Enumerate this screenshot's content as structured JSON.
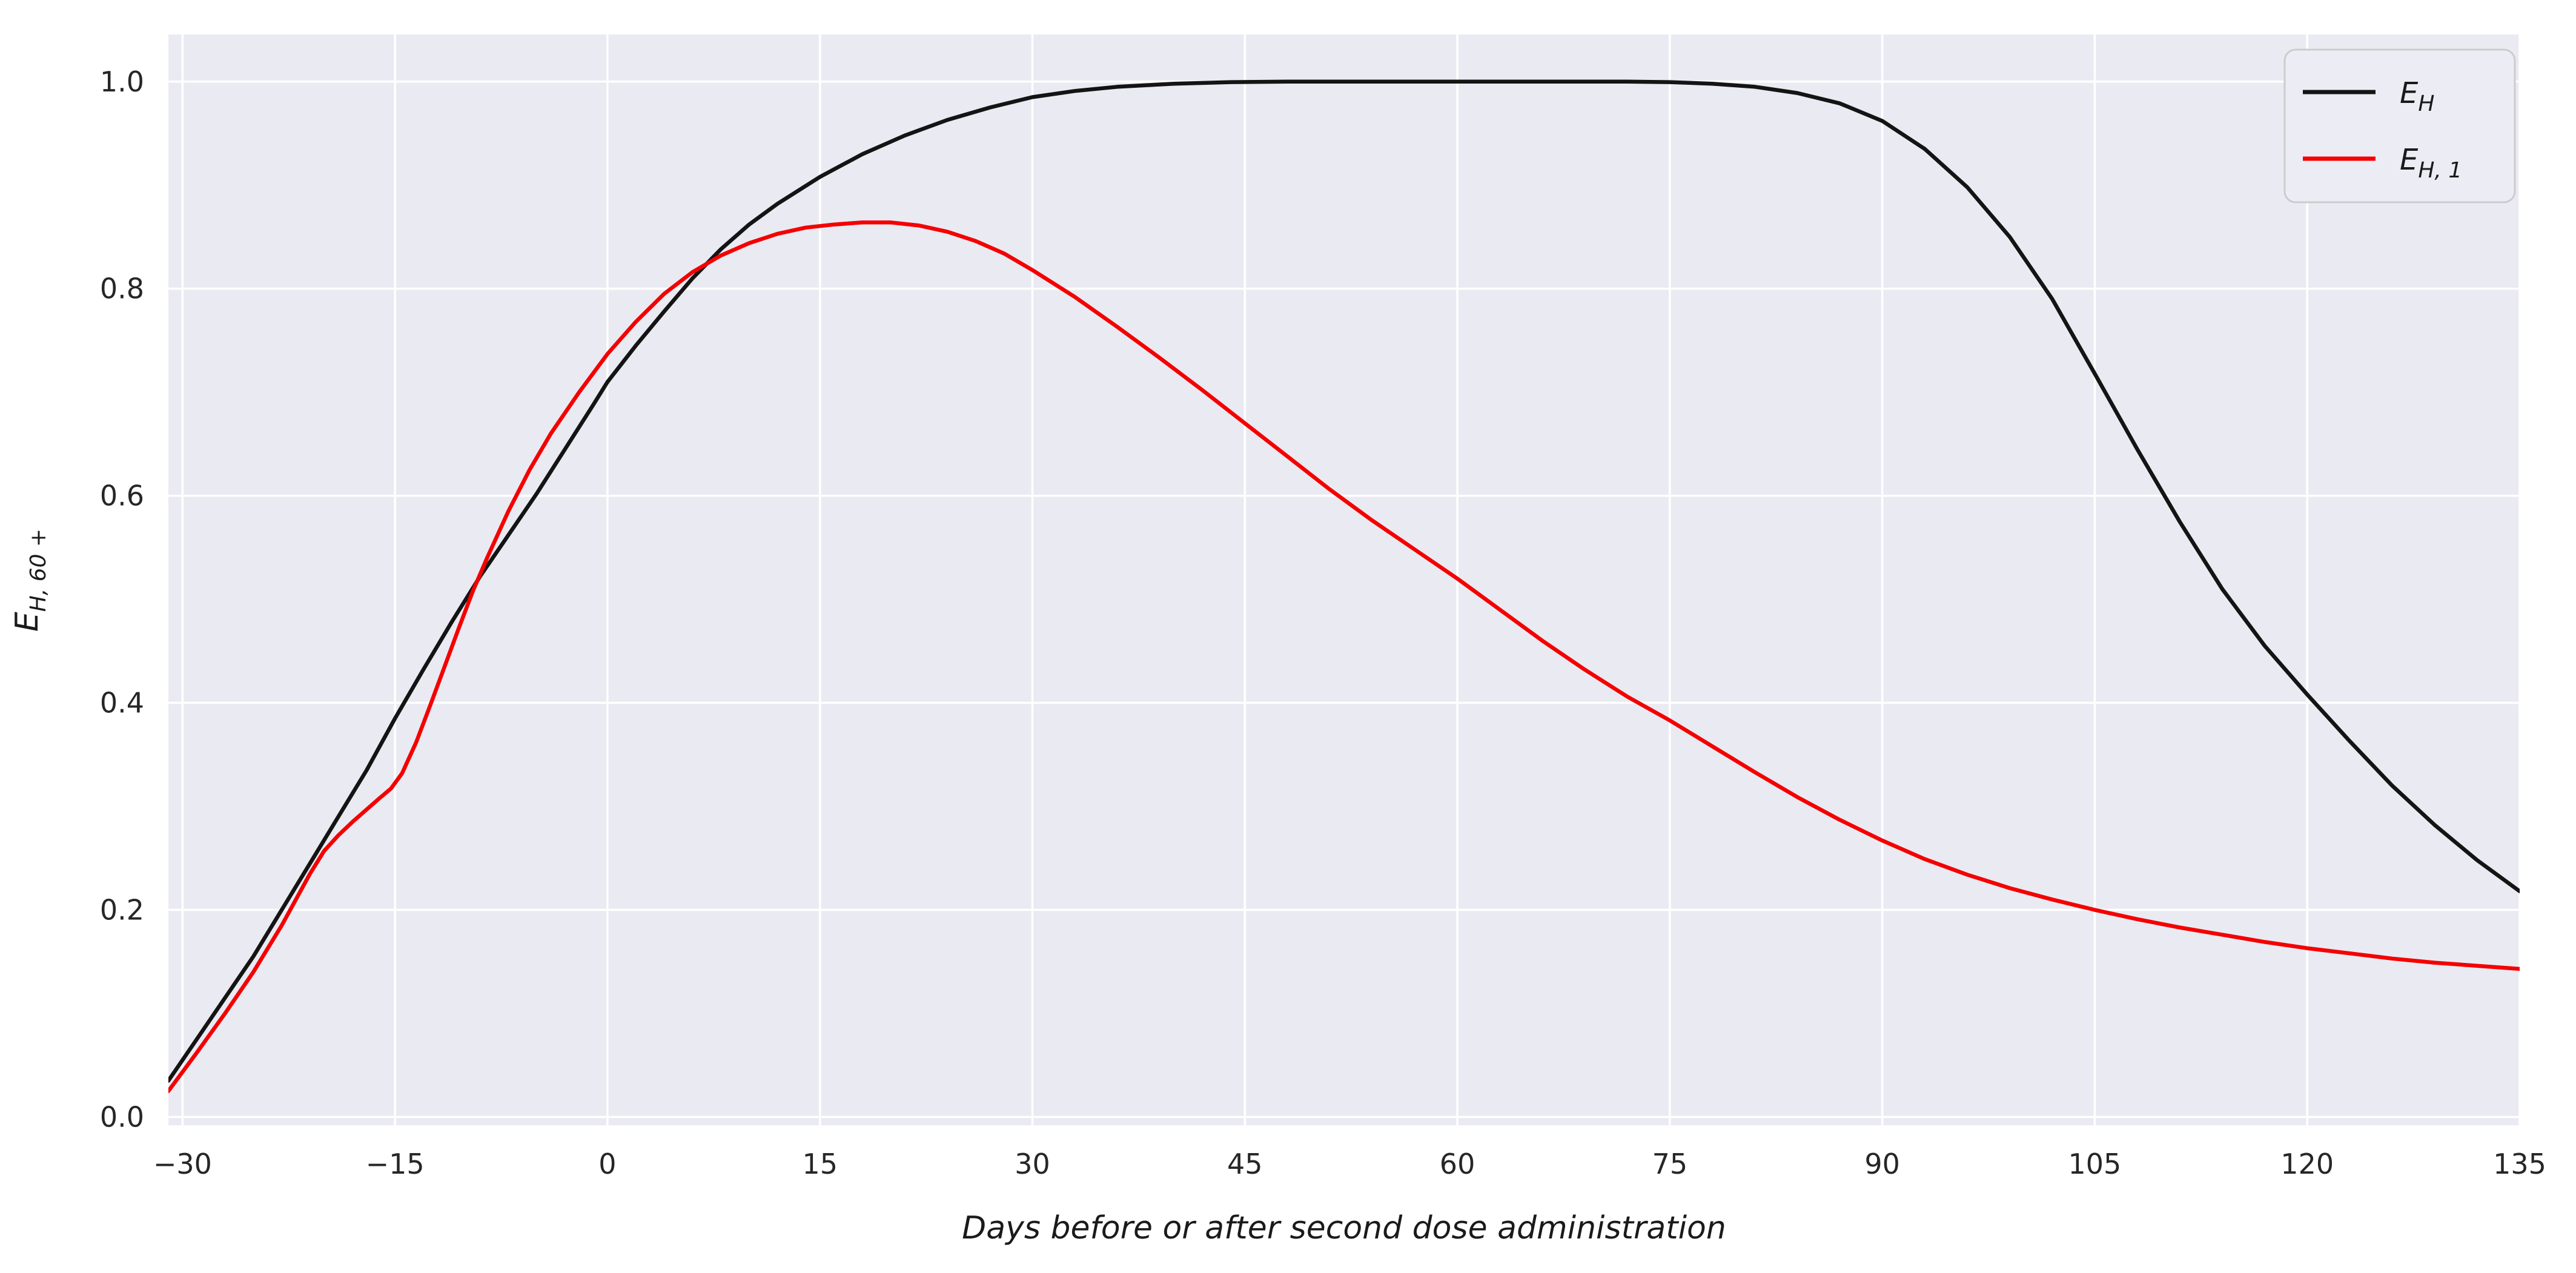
{
  "chart_data": {
    "type": "line",
    "title": "",
    "xlabel": "Days before or after second dose administration",
    "ylabel_main": "E",
    "ylabel_sub": "H, 60 +",
    "xlim": [
      -31,
      135
    ],
    "ylim": [
      -0.008,
      1.0455
    ],
    "grid": true,
    "legend_position": "upper right",
    "xticks": {
      "values": [
        -30,
        -15,
        0,
        15,
        30,
        45,
        60,
        75,
        90,
        105,
        120,
        135
      ],
      "labels": [
        "−30",
        "−15",
        "0",
        "15",
        "30",
        "45",
        "60",
        "75",
        "90",
        "105",
        "120",
        "135"
      ]
    },
    "yticks": {
      "values": [
        0.0,
        0.2,
        0.4,
        0.6,
        0.8,
        1.0
      ],
      "labels": [
        "0.0",
        "0.2",
        "0.4",
        "0.6",
        "0.8",
        "1.0"
      ]
    },
    "series": [
      {
        "name_main": "E",
        "name_sub": "H",
        "color": "#141414",
        "points": [
          [
            -31,
            0.035
          ],
          [
            -29,
            0.075
          ],
          [
            -27,
            0.115
          ],
          [
            -25,
            0.155
          ],
          [
            -23,
            0.2
          ],
          [
            -21,
            0.245
          ],
          [
            -19,
            0.29
          ],
          [
            -17,
            0.335
          ],
          [
            -15,
            0.385
          ],
          [
            -13,
            0.432
          ],
          [
            -11,
            0.478
          ],
          [
            -9,
            0.522
          ],
          [
            -7,
            0.562
          ],
          [
            -5,
            0.602
          ],
          [
            -3,
            0.645
          ],
          [
            -1,
            0.688
          ],
          [
            0,
            0.71
          ],
          [
            2,
            0.745
          ],
          [
            4,
            0.778
          ],
          [
            6,
            0.81
          ],
          [
            8,
            0.838
          ],
          [
            10,
            0.862
          ],
          [
            12,
            0.882
          ],
          [
            15,
            0.908
          ],
          [
            18,
            0.93
          ],
          [
            21,
            0.948
          ],
          [
            24,
            0.963
          ],
          [
            27,
            0.975
          ],
          [
            30,
            0.985
          ],
          [
            33,
            0.991
          ],
          [
            36,
            0.995
          ],
          [
            40,
            0.998
          ],
          [
            44,
            0.9995
          ],
          [
            48,
            1.0
          ],
          [
            55,
            1.0
          ],
          [
            62,
            1.0
          ],
          [
            68,
            1.0
          ],
          [
            72,
            1.0
          ],
          [
            75,
            0.9995
          ],
          [
            78,
            0.998
          ],
          [
            81,
            0.995
          ],
          [
            84,
            0.989
          ],
          [
            87,
            0.979
          ],
          [
            90,
            0.962
          ],
          [
            93,
            0.935
          ],
          [
            96,
            0.898
          ],
          [
            99,
            0.85
          ],
          [
            102,
            0.79
          ],
          [
            105,
            0.718
          ],
          [
            108,
            0.645
          ],
          [
            111,
            0.575
          ],
          [
            114,
            0.51
          ],
          [
            117,
            0.455
          ],
          [
            120,
            0.408
          ],
          [
            123,
            0.363
          ],
          [
            126,
            0.32
          ],
          [
            129,
            0.282
          ],
          [
            132,
            0.248
          ],
          [
            135,
            0.218
          ]
        ]
      },
      {
        "name_main": "E",
        "name_sub": "H, 1",
        "color": "#f40000",
        "points": [
          [
            -31,
            0.025
          ],
          [
            -29,
            0.062
          ],
          [
            -27,
            0.1
          ],
          [
            -25,
            0.14
          ],
          [
            -23,
            0.185
          ],
          [
            -21,
            0.235
          ],
          [
            -20,
            0.257
          ],
          [
            -19,
            0.272
          ],
          [
            -18,
            0.285
          ],
          [
            -17,
            0.297
          ],
          [
            -16,
            0.309
          ],
          [
            -15.3,
            0.317
          ],
          [
            -14.5,
            0.332
          ],
          [
            -13.5,
            0.362
          ],
          [
            -12.5,
            0.398
          ],
          [
            -11.5,
            0.435
          ],
          [
            -10.5,
            0.472
          ],
          [
            -9.5,
            0.508
          ],
          [
            -8.5,
            0.54
          ],
          [
            -7,
            0.585
          ],
          [
            -5.5,
            0.625
          ],
          [
            -4,
            0.66
          ],
          [
            -2,
            0.7
          ],
          [
            0,
            0.737
          ],
          [
            2,
            0.768
          ],
          [
            4,
            0.795
          ],
          [
            6,
            0.816
          ],
          [
            8,
            0.832
          ],
          [
            10,
            0.844
          ],
          [
            12,
            0.853
          ],
          [
            14,
            0.859
          ],
          [
            16,
            0.862
          ],
          [
            18,
            0.864
          ],
          [
            20,
            0.864
          ],
          [
            22,
            0.861
          ],
          [
            24,
            0.855
          ],
          [
            26,
            0.846
          ],
          [
            28,
            0.834
          ],
          [
            30,
            0.818
          ],
          [
            33,
            0.792
          ],
          [
            36,
            0.763
          ],
          [
            39,
            0.733
          ],
          [
            42,
            0.702
          ],
          [
            45,
            0.67
          ],
          [
            48,
            0.638
          ],
          [
            51,
            0.606
          ],
          [
            54,
            0.576
          ],
          [
            57,
            0.548
          ],
          [
            60,
            0.52
          ],
          [
            63,
            0.49
          ],
          [
            66,
            0.46
          ],
          [
            69,
            0.432
          ],
          [
            72,
            0.406
          ],
          [
            75,
            0.383
          ],
          [
            78,
            0.358
          ],
          [
            81,
            0.333
          ],
          [
            84,
            0.309
          ],
          [
            87,
            0.287
          ],
          [
            90,
            0.267
          ],
          [
            93,
            0.249
          ],
          [
            96,
            0.234
          ],
          [
            99,
            0.221
          ],
          [
            102,
            0.21
          ],
          [
            105,
            0.2
          ],
          [
            108,
            0.191
          ],
          [
            111,
            0.183
          ],
          [
            114,
            0.176
          ],
          [
            117,
            0.169
          ],
          [
            120,
            0.163
          ],
          [
            123,
            0.158
          ],
          [
            126,
            0.153
          ],
          [
            129,
            0.149
          ],
          [
            132,
            0.146
          ],
          [
            135,
            0.143
          ]
        ]
      }
    ],
    "colors": {
      "plot_bg": "#eaeaf2",
      "grid": "#ffffff",
      "text": "#262626",
      "legend_bg": "#ecedf4",
      "legend_border": "#cccccc"
    }
  }
}
